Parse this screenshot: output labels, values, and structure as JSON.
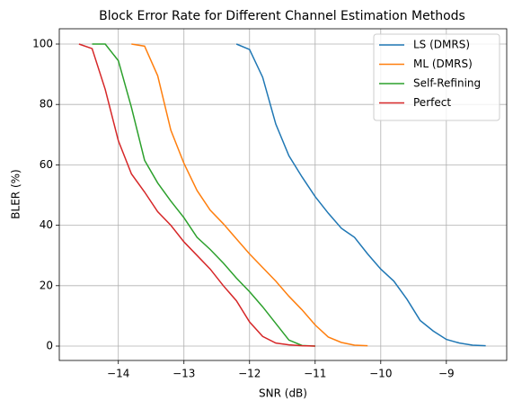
{
  "chart_data": {
    "type": "line",
    "title": "Block Error Rate for Different Channel Estimation Methods",
    "x_label": "SNR (dB)",
    "y_label": "BLER (%)",
    "xlim": [
      -14.9,
      -8.08
    ],
    "ylim": [
      -4.76,
      105.06
    ],
    "xticks": [
      {
        "value": -14,
        "label": "−14"
      },
      {
        "value": -13,
        "label": "−13"
      },
      {
        "value": -12,
        "label": "−12"
      },
      {
        "value": -11,
        "label": "−11"
      },
      {
        "value": -10,
        "label": "−10"
      },
      {
        "value": -9,
        "label": "−9"
      }
    ],
    "yticks": [
      0,
      20,
      40,
      60,
      80,
      100
    ],
    "grid": true,
    "legend": "upper right",
    "series": [
      {
        "name": "LS (DMRS)",
        "color": "#1f77b4",
        "x": [
          -12.2,
          -12.0,
          -11.8,
          -11.6,
          -11.4,
          -11.2,
          -11.0,
          -10.8,
          -10.6,
          -10.4,
          -10.2,
          -10.0,
          -9.8,
          -9.6,
          -9.4,
          -9.2,
          -9.0,
          -8.8,
          -8.6,
          -8.4
        ],
        "values": [
          100,
          98.2,
          89,
          73.5,
          63,
          56,
          49.5,
          44,
          39,
          36,
          30.5,
          25.5,
          21.5,
          15.5,
          8.5,
          5,
          2.2,
          1,
          0.3,
          0.1
        ]
      },
      {
        "name": "ML (DMRS)",
        "color": "#ff7f0e",
        "x": [
          -13.8,
          -13.6,
          -13.4,
          -13.2,
          -13.0,
          -12.8,
          -12.6,
          -12.4,
          -12.2,
          -12.0,
          -11.8,
          -11.6,
          -11.4,
          -11.2,
          -11.0,
          -10.8,
          -10.6,
          -10.4,
          -10.2
        ],
        "values": [
          100,
          99.3,
          89.5,
          71.5,
          60.5,
          51.5,
          45,
          40.5,
          35.5,
          30.5,
          26,
          21.5,
          16.5,
          12,
          7,
          3,
          1.2,
          0.3,
          0.1
        ]
      },
      {
        "name": "Self-Refining",
        "color": "#2ca02c",
        "x": [
          -14.4,
          -14.2,
          -14.0,
          -13.8,
          -13.6,
          -13.4,
          -13.2,
          -13.0,
          -12.8,
          -12.6,
          -12.4,
          -12.2,
          -12.0,
          -11.8,
          -11.6,
          -11.4,
          -11.2,
          -11.0
        ],
        "values": [
          100,
          100,
          94.5,
          79,
          61.5,
          54,
          48,
          42.5,
          36,
          32,
          27.5,
          22.5,
          18,
          13,
          7.5,
          2,
          0.2,
          0
        ]
      },
      {
        "name": "Perfect",
        "color": "#d62728",
        "x": [
          -14.6,
          -14.4,
          -14.2,
          -14.0,
          -13.8,
          -13.6,
          -13.4,
          -13.2,
          -13.0,
          -12.8,
          -12.6,
          -12.4,
          -12.2,
          -12.0,
          -11.8,
          -11.6,
          -11.4,
          -11.2,
          -11.0
        ],
        "values": [
          100,
          98.5,
          85,
          68,
          57,
          51,
          44.5,
          40,
          34.5,
          30,
          25.5,
          20,
          15,
          8,
          3.2,
          1,
          0.4,
          0.1,
          0
        ]
      }
    ]
  }
}
